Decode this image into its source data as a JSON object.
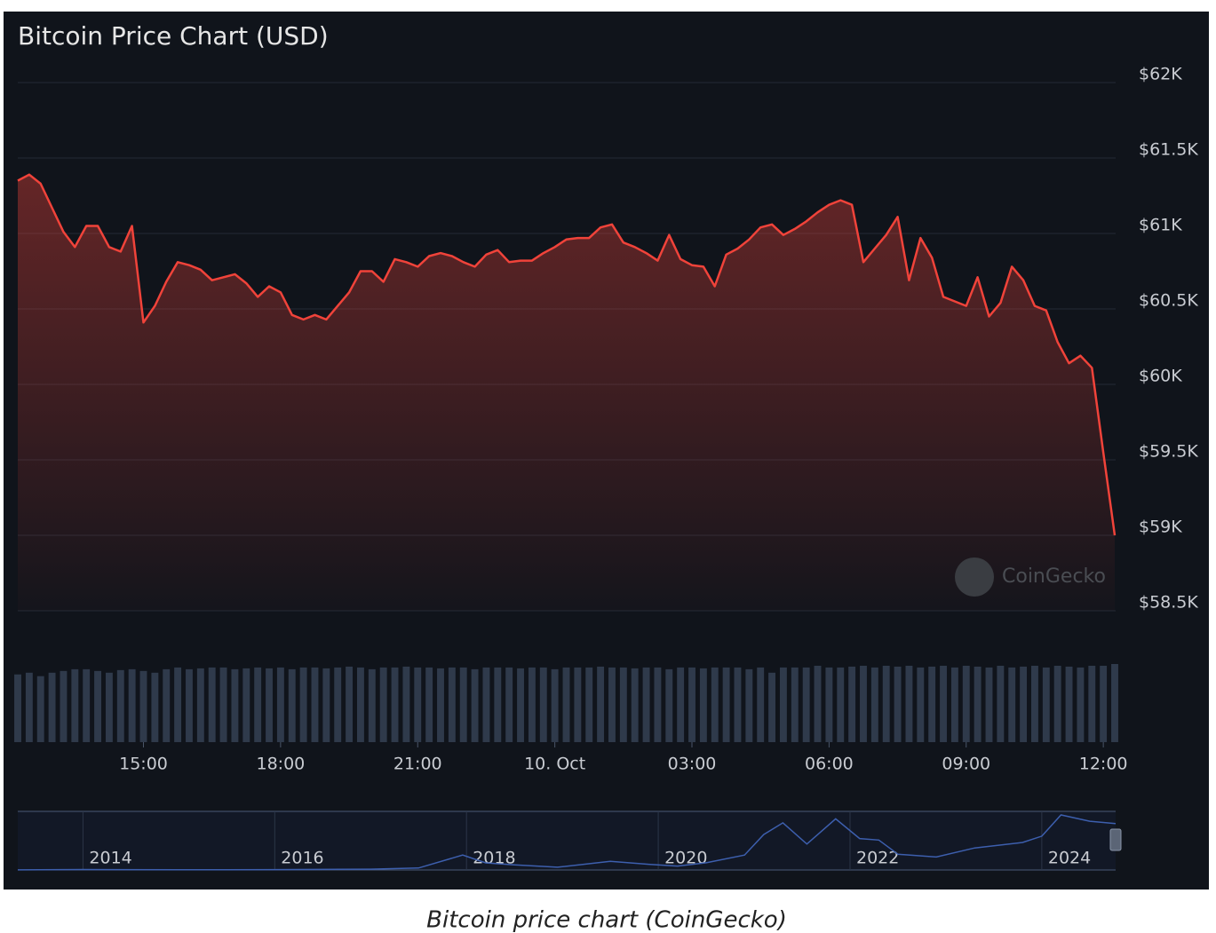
{
  "chart_data": [
    {
      "type": "line",
      "title": "Bitcoin Price Chart (USD)",
      "annotation": "CoinGecko",
      "color": "#f0433a",
      "volume_color": "#2f3a4b",
      "x": [
        12.25,
        12.5,
        12.75,
        13,
        13.25,
        13.5,
        13.75,
        14,
        14.25,
        14.5,
        14.75,
        15,
        15.25,
        15.5,
        15.75,
        16,
        16.25,
        16.5,
        16.75,
        17,
        17.25,
        17.5,
        17.75,
        18,
        18.25,
        18.5,
        18.75,
        19,
        19.25,
        19.5,
        19.75,
        20,
        20.25,
        20.5,
        20.75,
        21,
        21.25,
        21.5,
        21.75,
        22,
        22.25,
        22.5,
        22.75,
        23,
        23.25,
        23.5,
        23.75,
        24,
        24.25,
        24.5,
        24.75,
        25,
        25.25,
        25.5,
        25.75,
        26,
        26.25,
        26.5,
        26.75,
        27,
        27.25,
        27.5,
        27.75,
        28,
        28.25,
        28.5,
        28.75,
        29,
        29.25,
        29.5,
        29.75,
        30,
        30.25,
        30.5,
        30.75,
        31,
        31.25,
        31.5,
        31.75,
        32,
        32.25,
        32.5,
        32.75,
        33,
        33.25,
        33.5,
        33.75,
        34,
        34.25,
        34.5,
        34.75,
        35,
        35.25,
        35.5,
        35.75,
        36,
        36.25
      ],
      "values": [
        61350,
        61390,
        61330,
        61170,
        61010,
        60910,
        61050,
        61050,
        60910,
        60880,
        61050,
        60410,
        60520,
        60680,
        60810,
        60790,
        60760,
        60690,
        60710,
        60730,
        60670,
        60580,
        60650,
        60610,
        60460,
        60430,
        60460,
        60430,
        60520,
        60610,
        60750,
        60750,
        60680,
        60830,
        60810,
        60780,
        60850,
        60870,
        60850,
        60810,
        60780,
        60860,
        60890,
        60810,
        60820,
        60820,
        60870,
        60910,
        60960,
        60970,
        60970,
        61040,
        61060,
        60940,
        60910,
        60870,
        60820,
        60990,
        60830,
        60790,
        60780,
        60650,
        60860,
        60900,
        60960,
        61040,
        61060,
        60990,
        61030,
        61080,
        61140,
        61190,
        61220,
        61190,
        60810,
        60900,
        60990,
        61110,
        60690,
        60970,
        60840,
        60580,
        60550,
        60520,
        60710,
        60450,
        60540,
        60780,
        60690,
        60520,
        60490,
        60280,
        60140,
        60190,
        60110,
        59550,
        59000
      ],
      "volume": [
        78,
        80,
        76,
        80,
        82,
        84,
        84,
        82,
        80,
        83,
        84,
        82,
        80,
        84,
        86,
        84,
        85,
        86,
        86,
        84,
        85,
        86,
        85,
        86,
        84,
        86,
        86,
        85,
        86,
        87,
        86,
        84,
        86,
        86,
        87,
        86,
        86,
        85,
        86,
        86,
        84,
        86,
        86,
        86,
        85,
        86,
        86,
        84,
        86,
        86,
        86,
        87,
        86,
        86,
        85,
        86,
        86,
        84,
        86,
        86,
        85,
        86,
        86,
        86,
        84,
        86,
        80,
        86,
        86,
        86,
        88,
        86,
        86,
        87,
        88,
        86,
        88,
        87,
        88,
        86,
        87,
        88,
        86,
        88,
        87,
        86,
        88,
        86,
        87,
        88,
        86,
        88,
        87,
        86,
        88,
        88,
        90
      ],
      "xlim": [
        12.25,
        36.25
      ],
      "xticks": [
        {
          "value": 15,
          "label": "15:00"
        },
        {
          "value": 18,
          "label": "18:00"
        },
        {
          "value": 21,
          "label": "21:00"
        },
        {
          "value": 24,
          "label": "10. Oct"
        },
        {
          "value": 27,
          "label": "03:00"
        },
        {
          "value": 30,
          "label": "06:00"
        },
        {
          "value": 33,
          "label": "09:00"
        },
        {
          "value": 36,
          "label": "12:00"
        }
      ],
      "ylim": [
        58500,
        62000
      ],
      "yticks": [
        {
          "value": 58500,
          "label": "$58.5K"
        },
        {
          "value": 59000,
          "label": "$59K"
        },
        {
          "value": 59500,
          "label": "$59.5K"
        },
        {
          "value": 60000,
          "label": "$60K"
        },
        {
          "value": 60500,
          "label": "$60.5K"
        },
        {
          "value": 61000,
          "label": "$61K"
        },
        {
          "value": 61500,
          "label": "$61.5K"
        },
        {
          "value": 62000,
          "label": "$62K"
        }
      ],
      "grid": true
    },
    {
      "type": "navigator",
      "color": "#3d5fae",
      "x": [
        2013.32,
        2014,
        2015,
        2016,
        2017,
        2017.5,
        2017.96,
        2018.2,
        2018.5,
        2018.95,
        2019.5,
        2019.9,
        2020.2,
        2020.5,
        2020.9,
        2021.1,
        2021.3,
        2021.55,
        2021.85,
        2022.1,
        2022.3,
        2022.5,
        2022.9,
        2023.3,
        2023.8,
        2024,
        2024.2,
        2024.5,
        2024.77
      ],
      "values": [
        100,
        600,
        250,
        430,
        1000,
        2500,
        19000,
        9000,
        6500,
        3500,
        11000,
        7200,
        5000,
        9200,
        19000,
        45000,
        60000,
        33000,
        65000,
        40000,
        38000,
        20000,
        16500,
        28000,
        35000,
        43000,
        70000,
        62000,
        59000
      ],
      "xlim": [
        2013.32,
        2024.77
      ],
      "xticks": [
        2014,
        2016,
        2018,
        2020,
        2022,
        2024
      ]
    }
  ],
  "caption": "Bitcoin price chart (CoinGecko)"
}
